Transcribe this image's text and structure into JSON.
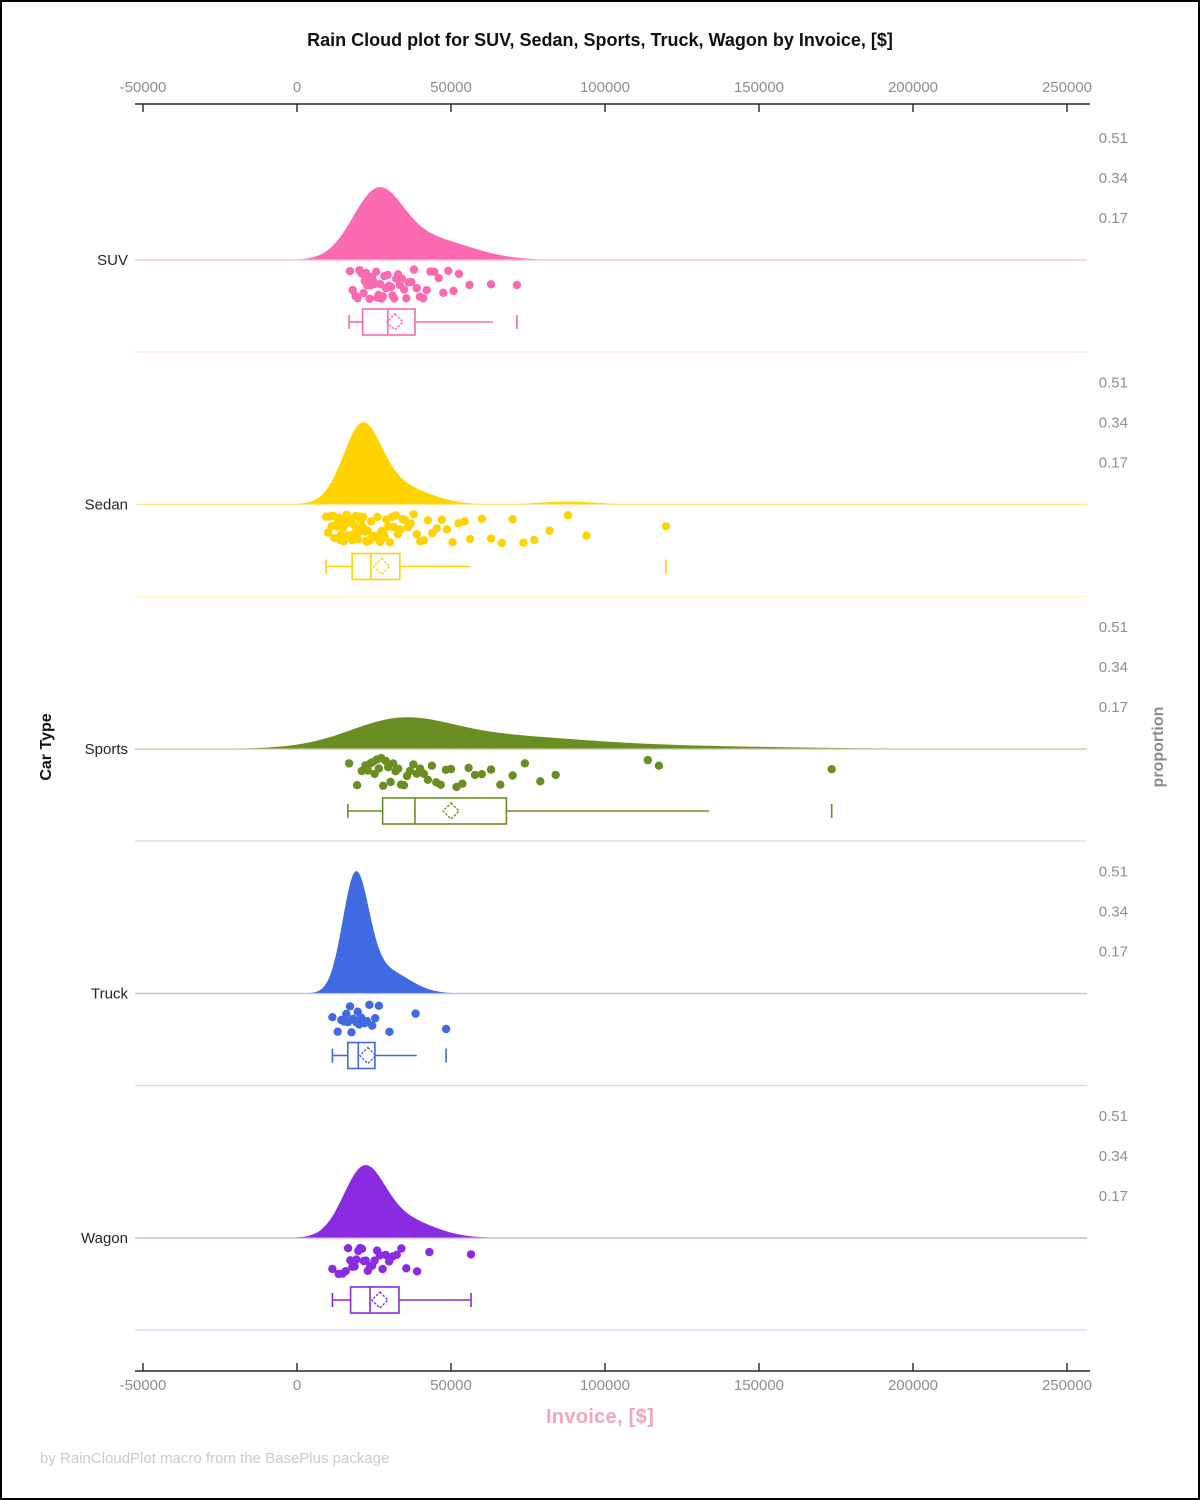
{
  "chart_data": {
    "type": "raincloud",
    "title": "Rain Cloud plot for SUV, Sedan, Sports, Truck, Wagon by Invoice, [$]",
    "xlabel": "Invoice, [$]",
    "ylabel_left": "Car Type",
    "ylabel_right": "proportion",
    "footer": "by RainCloudPlot macro from the BasePlus package",
    "x_axis": {
      "min": -50000,
      "max": 250000,
      "ticks": [
        -50000,
        0,
        50000,
        100000,
        150000,
        200000,
        250000
      ],
      "tick_labels": [
        "-50000",
        "0",
        "50000",
        "100000",
        "150000",
        "200000",
        "250000"
      ],
      "shown_top_and_bottom": true
    },
    "proportion_ticks": [
      0.17,
      0.34,
      0.51
    ],
    "proportion_tick_labels": [
      "0.17",
      "0.34",
      "0.51"
    ],
    "categories": [
      {
        "name": "SUV",
        "color": "#FB69B1",
        "box": {
          "whisker_low": 16900,
          "q1": 21300,
          "median": 29500,
          "mean": 31800,
          "q3": 38300,
          "whisker_high": 63600,
          "outliers": [
            71400
          ],
          "cap_high": false
        },
        "density": {
          "peak_at": 26500,
          "peak_proportion": 0.31,
          "support": [
            -4000,
            90000
          ],
          "components": [
            {
              "mu": 26000,
              "sigma": 8000,
              "w": 1.0
            },
            {
              "mu": 42000,
              "sigma": 14000,
              "w": 0.35
            }
          ]
        },
        "points": [
          17200,
          18100,
          19000,
          19700,
          20300,
          20800,
          21200,
          21600,
          22000,
          22400,
          22800,
          23200,
          23600,
          24000,
          24400,
          24800,
          25200,
          25700,
          26100,
          26500,
          27000,
          27400,
          27900,
          28400,
          28900,
          29400,
          29900,
          30500,
          31000,
          31600,
          32200,
          32800,
          33400,
          34100,
          34800,
          35500,
          36300,
          37100,
          38000,
          38900,
          39900,
          41000,
          42100,
          43300,
          44600,
          46000,
          47500,
          49100,
          50800,
          52600,
          56000,
          63000,
          71400
        ]
      },
      {
        "name": "Sedan",
        "color": "#FFD300",
        "box": {
          "whisker_low": 9400,
          "q1": 17900,
          "median": 24000,
          "mean": 27500,
          "q3": 33400,
          "whisker_high": 56200,
          "outliers": [
            119800
          ],
          "cap_high": false
        },
        "density": {
          "peak_at": 21500,
          "peak_proportion": 0.35,
          "support": [
            0,
            118000
          ],
          "components": [
            {
              "mu": 21000,
              "sigma": 6000,
              "w": 1.0
            },
            {
              "mu": 30000,
              "sigma": 11000,
              "w": 0.32
            },
            {
              "mu": 88000,
              "sigma": 9000,
              "w": 0.045
            }
          ]
        },
        "points": [
          9400,
          10100,
          10700,
          11200,
          11700,
          12100,
          12500,
          12900,
          13300,
          13600,
          14000,
          14300,
          14600,
          14900,
          15200,
          15500,
          15800,
          16100,
          16400,
          16700,
          17000,
          17300,
          17600,
          17900,
          18200,
          18500,
          18800,
          19100,
          19400,
          19700,
          20000,
          20300,
          20600,
          20900,
          21200,
          21500,
          21800,
          22100,
          22400,
          22700,
          23000,
          23300,
          23700,
          24100,
          24500,
          24900,
          25300,
          25700,
          26100,
          26500,
          27000,
          27500,
          28000,
          28500,
          29000,
          29600,
          30200,
          30800,
          31400,
          32100,
          32800,
          33500,
          34300,
          35100,
          36000,
          36900,
          37900,
          38900,
          40000,
          41200,
          42500,
          43900,
          45400,
          47000,
          48700,
          50500,
          52400,
          54400,
          56200,
          60000,
          63000,
          66500,
          70000,
          73500,
          77000,
          82000,
          88000,
          94000,
          119800
        ]
      },
      {
        "name": "Sports",
        "color": "#6B8E23",
        "box": {
          "whisker_low": 16500,
          "q1": 27800,
          "median": 38300,
          "mean": 50000,
          "q3": 68000,
          "whisker_high": 133800,
          "outliers": [
            173600
          ],
          "cap_high": false
        },
        "density": {
          "peak_at": 36000,
          "peak_proportion": 0.135,
          "support": [
            -30000,
            205000
          ],
          "components": [
            {
              "mu": 33000,
              "sigma": 16000,
              "w": 1.0
            },
            {
              "mu": 60000,
              "sigma": 30000,
              "w": 0.55
            },
            {
              "mu": 120000,
              "sigma": 40000,
              "w": 0.12
            }
          ]
        },
        "points": [
          16900,
          19500,
          21000,
          22200,
          23000,
          23800,
          24500,
          25200,
          25900,
          26600,
          27300,
          28000,
          28800,
          29600,
          30400,
          31200,
          32000,
          32900,
          33800,
          34700,
          35700,
          36700,
          37800,
          38900,
          40000,
          41200,
          42500,
          43800,
          45200,
          46700,
          48300,
          50000,
          51800,
          53700,
          55700,
          57800,
          60000,
          63000,
          66000,
          70000,
          74000,
          79000,
          84000,
          113900,
          117500,
          173600
        ]
      },
      {
        "name": "Truck",
        "color": "#4169E1",
        "box": {
          "whisker_low": 11500,
          "q1": 16500,
          "median": 19900,
          "mean": 23000,
          "q3": 25300,
          "whisker_high": 38900,
          "outliers": [
            48400
          ],
          "cap_high": false
        },
        "density": {
          "peak_at": 19500,
          "peak_proportion": 0.52,
          "support": [
            2000,
            62000
          ],
          "components": [
            {
              "mu": 19000,
              "sigma": 4200,
              "w": 1.0
            },
            {
              "mu": 28000,
              "sigma": 8000,
              "w": 0.22
            }
          ]
        },
        "points": [
          11500,
          13200,
          14400,
          15300,
          16000,
          16600,
          17200,
          17700,
          18200,
          18700,
          19200,
          19700,
          20200,
          20800,
          21400,
          22000,
          22700,
          23500,
          24400,
          25400,
          26600,
          30000,
          38500,
          48400
        ]
      },
      {
        "name": "Wagon",
        "color": "#8A2BE2",
        "box": {
          "whisker_low": 11500,
          "q1": 17400,
          "median": 23700,
          "mean": 26900,
          "q3": 33100,
          "whisker_high": 56500,
          "outliers": [],
          "cap_high": true
        },
        "density": {
          "peak_at": 22500,
          "peak_proportion": 0.31,
          "support": [
            -4000,
            72000
          ],
          "components": [
            {
              "mu": 21500,
              "sigma": 6500,
              "w": 1.0
            },
            {
              "mu": 32000,
              "sigma": 11000,
              "w": 0.35
            }
          ]
        },
        "points": [
          11500,
          13500,
          14800,
          15800,
          16600,
          17300,
          18000,
          18700,
          19300,
          19900,
          20500,
          21100,
          21700,
          22300,
          23000,
          23700,
          24400,
          25200,
          26000,
          26900,
          27800,
          28800,
          29900,
          31100,
          32400,
          33900,
          35500,
          39000,
          43000,
          56500
        ]
      }
    ],
    "style": {
      "background": "#FFFFFF",
      "border_color": "#000000",
      "axis_line_color": "#262626",
      "tick_label_color": "#8E8E8E",
      "category_label_color": "#262626",
      "x_axis_title_color": "#F2A6B8",
      "footer_color": "#CBCBCB",
      "legend": "none",
      "grid": "off"
    }
  }
}
